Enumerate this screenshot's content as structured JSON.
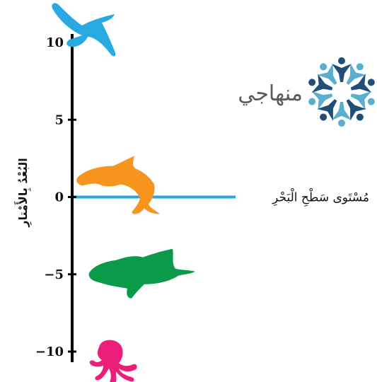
{
  "chart_data": {
    "type": "number-line",
    "orientation": "vertical",
    "ylabel": "البُعْدُ بِالأَمْتارِ",
    "ylim": [
      -10,
      10
    ],
    "ticks": [
      10,
      5,
      0,
      -5,
      -10
    ],
    "tick_labels": [
      "10",
      "5",
      "0",
      "−5",
      "−10"
    ],
    "reference_line": {
      "value": 0,
      "label": "مُسْتَوى سَطْحِ الْبَحْرِ",
      "color": "#2aa7de"
    },
    "markers": [
      {
        "name": "bird-icon",
        "value": 10,
        "color": "#29a9e1"
      },
      {
        "name": "dolphin-icon",
        "value": 0,
        "color": "#f7941d"
      },
      {
        "name": "shark-icon",
        "value": -5,
        "color": "#0b9a4a"
      },
      {
        "name": "octopus-icon",
        "value": -10,
        "color": "#ec1e79"
      }
    ]
  },
  "logo": {
    "text": "منهاجي",
    "colors": {
      "dark": "#1f4e79",
      "light": "#5aaecf"
    }
  },
  "colors": {
    "axis": "#000000"
  }
}
